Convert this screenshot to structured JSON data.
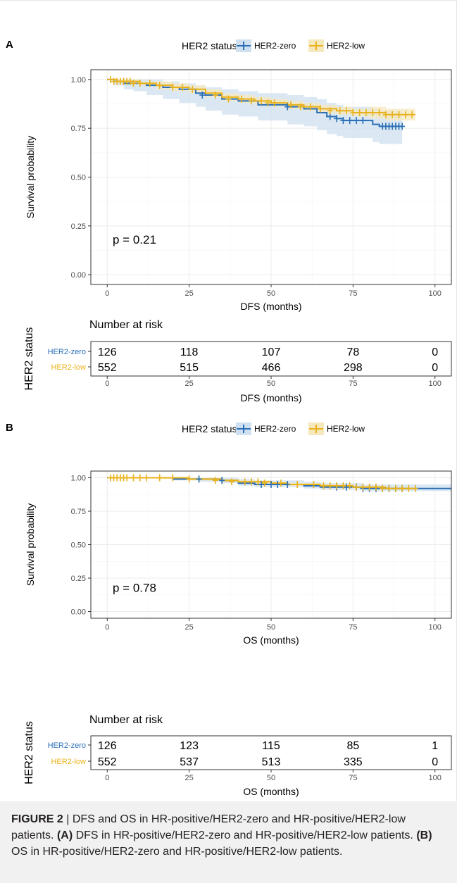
{
  "caption": {
    "figure_label": "FIGURE 2",
    "separator": " | ",
    "lead": "DFS and OS in HR-positive/HER2-zero and HR-positive/HER2-low patients. ",
    "a_label": "(A)",
    "a_text": " DFS in HR-positive/HER2-zero and HR-positive/HER2-low patients. ",
    "b_label": "(B)",
    "b_text": " OS in HR-positive/HER2-zero and HR-positive/HER2-low patients."
  },
  "colors": {
    "her2_zero": "#2a6fb6",
    "her2_low": "#e9b21b",
    "ci_zero": "#cfe0f0",
    "ci_low": "#f6e8bd",
    "grid": "#ebebeb",
    "panel_border": "#333333"
  },
  "chart_data": [
    {
      "type": "line",
      "panel_label": "A",
      "legend_title": "HER2 status",
      "legend_position": "top",
      "xlabel": "DFS (months)",
      "ylabel": "Survival probability",
      "xlim": [
        -5,
        105
      ],
      "ylim": [
        -0.05,
        1.05
      ],
      "x_ticks": [
        0,
        25,
        50,
        75,
        100
      ],
      "y_ticks": [
        "0.00",
        "0.25",
        "0.50",
        "0.75",
        "1.00"
      ],
      "grid": true,
      "pvalue": "p = 0.21",
      "series": [
        {
          "name": "HER2-zero",
          "color": "#2a6fb6",
          "x": [
            0,
            2,
            5,
            8,
            12,
            17,
            22,
            27,
            30,
            35,
            40,
            46,
            50,
            55,
            60,
            64,
            67,
            70,
            72,
            75,
            78,
            81,
            83,
            90
          ],
          "y": [
            1.0,
            0.99,
            0.98,
            0.98,
            0.97,
            0.96,
            0.95,
            0.93,
            0.92,
            0.9,
            0.89,
            0.87,
            0.87,
            0.86,
            0.85,
            0.83,
            0.81,
            0.8,
            0.79,
            0.79,
            0.79,
            0.77,
            0.76,
            0.76
          ],
          "ci_lower": [
            1.0,
            0.97,
            0.95,
            0.94,
            0.92,
            0.9,
            0.88,
            0.86,
            0.84,
            0.82,
            0.81,
            0.79,
            0.79,
            0.77,
            0.76,
            0.74,
            0.72,
            0.71,
            0.7,
            0.7,
            0.7,
            0.68,
            0.67,
            0.67
          ],
          "ci_upper": [
            1.0,
            1.0,
            1.0,
            1.0,
            1.0,
            0.99,
            0.98,
            0.97,
            0.96,
            0.95,
            0.94,
            0.93,
            0.93,
            0.92,
            0.91,
            0.9,
            0.88,
            0.87,
            0.86,
            0.86,
            0.86,
            0.85,
            0.84,
            0.84
          ],
          "censor_x": [
            29,
            55,
            68,
            70,
            72,
            74,
            76,
            78,
            84,
            85,
            86,
            87,
            88,
            89,
            90
          ],
          "censor_y": [
            0.92,
            0.86,
            0.81,
            0.8,
            0.79,
            0.79,
            0.79,
            0.79,
            0.76,
            0.76,
            0.76,
            0.76,
            0.76,
            0.76,
            0.76
          ]
        },
        {
          "name": "HER2-low",
          "color": "#e9b21b",
          "x": [
            0,
            3,
            6,
            10,
            15,
            20,
            25,
            30,
            35,
            40,
            45,
            50,
            55,
            60,
            65,
            70,
            75,
            80,
            85,
            90,
            94
          ],
          "y": [
            1.0,
            0.99,
            0.99,
            0.98,
            0.97,
            0.96,
            0.95,
            0.93,
            0.91,
            0.9,
            0.89,
            0.88,
            0.87,
            0.86,
            0.85,
            0.84,
            0.83,
            0.83,
            0.82,
            0.82,
            0.82
          ],
          "ci_lower": [
            1.0,
            0.98,
            0.98,
            0.97,
            0.95,
            0.94,
            0.93,
            0.91,
            0.89,
            0.88,
            0.87,
            0.86,
            0.85,
            0.84,
            0.83,
            0.82,
            0.81,
            0.8,
            0.79,
            0.79,
            0.79
          ],
          "ci_upper": [
            1.0,
            1.0,
            1.0,
            0.99,
            0.99,
            0.98,
            0.97,
            0.95,
            0.93,
            0.92,
            0.91,
            0.9,
            0.89,
            0.88,
            0.87,
            0.86,
            0.85,
            0.86,
            0.85,
            0.85,
            0.85
          ],
          "censor_x": [
            1,
            2,
            3,
            4,
            5,
            6,
            7,
            8,
            10,
            13,
            16,
            20,
            23,
            26,
            33,
            37,
            41,
            44,
            47,
            49,
            51,
            56,
            59,
            62,
            65,
            68,
            71,
            73,
            75,
            77,
            79,
            81,
            83,
            85,
            87,
            89,
            91,
            93
          ],
          "censor_y": [
            1.0,
            0.99,
            0.99,
            0.99,
            0.99,
            0.99,
            0.99,
            0.98,
            0.98,
            0.98,
            0.97,
            0.96,
            0.96,
            0.95,
            0.92,
            0.9,
            0.9,
            0.89,
            0.89,
            0.88,
            0.88,
            0.87,
            0.86,
            0.86,
            0.85,
            0.84,
            0.84,
            0.84,
            0.83,
            0.83,
            0.83,
            0.83,
            0.83,
            0.82,
            0.82,
            0.82,
            0.82,
            0.82
          ]
        }
      ],
      "risk_table": {
        "title": "Number at risk",
        "row_axis_label": "HER2 status",
        "xlabel": "DFS (months)",
        "times": [
          0,
          25,
          50,
          75,
          100
        ],
        "rows": [
          {
            "name": "HER2-zero",
            "color": "#2a6fb6",
            "values": [
              "126",
              "118",
              "107",
              "78",
              "0"
            ]
          },
          {
            "name": "HER2-low",
            "color": "#e9b21b",
            "values": [
              "552",
              "515",
              "466",
              "298",
              "0"
            ]
          }
        ]
      }
    },
    {
      "type": "line",
      "panel_label": "B",
      "legend_title": "HER2 status",
      "legend_position": "top",
      "xlabel": "OS (months)",
      "ylabel": "Survival probability",
      "xlim": [
        -5,
        105
      ],
      "ylim": [
        -0.05,
        1.05
      ],
      "x_ticks": [
        0,
        25,
        50,
        75,
        100
      ],
      "y_ticks": [
        "0.00",
        "0.25",
        "0.50",
        "0.75",
        "1.00"
      ],
      "grid": true,
      "pvalue": "p = 0.78",
      "series": [
        {
          "name": "HER2-zero",
          "color": "#2a6fb6",
          "x": [
            0,
            10,
            20,
            28,
            35,
            40,
            45,
            50,
            55,
            60,
            65,
            70,
            75,
            78,
            105
          ],
          "y": [
            1.0,
            1.0,
            0.99,
            0.99,
            0.98,
            0.96,
            0.95,
            0.95,
            0.95,
            0.94,
            0.93,
            0.93,
            0.93,
            0.92,
            0.92
          ],
          "ci_lower": [
            1.0,
            1.0,
            0.98,
            0.97,
            0.96,
            0.94,
            0.93,
            0.93,
            0.93,
            0.92,
            0.91,
            0.91,
            0.91,
            0.9,
            0.9
          ],
          "ci_upper": [
            1.0,
            1.0,
            1.0,
            1.0,
            1.0,
            0.99,
            0.98,
            0.98,
            0.98,
            0.97,
            0.96,
            0.96,
            0.96,
            0.95,
            0.95
          ],
          "censor_x": [
            28,
            35,
            47,
            50,
            52,
            55,
            70,
            73,
            76,
            78,
            80,
            82,
            84,
            86,
            88,
            90
          ],
          "censor_y": [
            0.99,
            0.98,
            0.95,
            0.95,
            0.95,
            0.95,
            0.93,
            0.93,
            0.93,
            0.92,
            0.92,
            0.92,
            0.92,
            0.92,
            0.92,
            0.92
          ]
        },
        {
          "name": "HER2-low",
          "color": "#e9b21b",
          "x": [
            0,
            15,
            25,
            35,
            40,
            45,
            50,
            55,
            60,
            65,
            70,
            75,
            80,
            85,
            90,
            94
          ],
          "y": [
            1.0,
            1.0,
            0.99,
            0.98,
            0.97,
            0.97,
            0.96,
            0.95,
            0.95,
            0.94,
            0.94,
            0.93,
            0.93,
            0.92,
            0.92,
            0.92
          ],
          "ci_lower": [
            1.0,
            0.99,
            0.98,
            0.97,
            0.96,
            0.96,
            0.95,
            0.94,
            0.94,
            0.93,
            0.93,
            0.92,
            0.92,
            0.91,
            0.91,
            0.91
          ],
          "ci_upper": [
            1.0,
            1.0,
            1.0,
            0.99,
            0.98,
            0.98,
            0.97,
            0.96,
            0.96,
            0.95,
            0.95,
            0.94,
            0.94,
            0.93,
            0.93,
            0.93
          ],
          "censor_x": [
            1,
            2,
            3,
            4,
            5,
            6,
            8,
            10,
            12,
            16,
            20,
            25,
            33,
            38,
            42,
            44,
            46,
            48,
            53,
            58,
            63,
            66,
            68,
            70,
            72,
            74,
            76,
            78,
            80,
            82,
            84,
            86,
            88,
            90,
            92,
            94
          ],
          "censor_y": [
            1.0,
            1.0,
            1.0,
            1.0,
            1.0,
            1.0,
            1.0,
            1.0,
            1.0,
            1.0,
            1.0,
            0.99,
            0.98,
            0.97,
            0.97,
            0.97,
            0.97,
            0.96,
            0.96,
            0.95,
            0.95,
            0.94,
            0.94,
            0.94,
            0.94,
            0.94,
            0.93,
            0.93,
            0.93,
            0.93,
            0.92,
            0.92,
            0.92,
            0.92,
            0.92,
            0.92
          ]
        }
      ],
      "risk_table": {
        "title": "Number at risk",
        "row_axis_label": "HER2 status",
        "xlabel": "OS (months)",
        "times": [
          0,
          25,
          50,
          75,
          100
        ],
        "rows": [
          {
            "name": "HER2-zero",
            "color": "#2a6fb6",
            "values": [
              "126",
              "123",
              "115",
              "85",
              "1"
            ]
          },
          {
            "name": "HER2-low",
            "color": "#e9b21b",
            "values": [
              "552",
              "537",
              "513",
              "335",
              "0"
            ]
          }
        ]
      }
    }
  ]
}
